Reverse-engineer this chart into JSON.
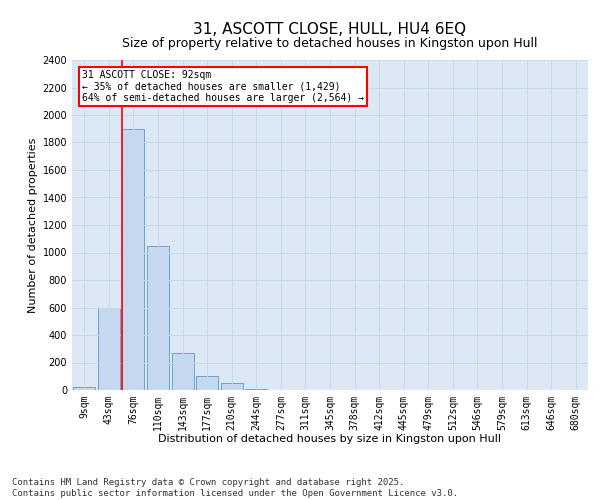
{
  "title": "31, ASCOTT CLOSE, HULL, HU4 6EQ",
  "subtitle": "Size of property relative to detached houses in Kingston upon Hull",
  "xlabel": "Distribution of detached houses by size in Kingston upon Hull",
  "ylabel": "Number of detached properties",
  "footer": "Contains HM Land Registry data © Crown copyright and database right 2025.\nContains public sector information licensed under the Open Government Licence v3.0.",
  "categories": [
    "9sqm",
    "43sqm",
    "76sqm",
    "110sqm",
    "143sqm",
    "177sqm",
    "210sqm",
    "244sqm",
    "277sqm",
    "311sqm",
    "345sqm",
    "378sqm",
    "412sqm",
    "445sqm",
    "479sqm",
    "512sqm",
    "546sqm",
    "579sqm",
    "613sqm",
    "646sqm",
    "680sqm"
  ],
  "values": [
    20,
    600,
    1900,
    1050,
    270,
    105,
    50,
    5,
    0,
    0,
    0,
    0,
    0,
    0,
    0,
    0,
    0,
    0,
    0,
    0,
    0
  ],
  "bar_color": "#c5d8ef",
  "bar_edge_color": "#5b9ac8",
  "vline_index": 2,
  "vline_color": "red",
  "annotation_text": "31 ASCOTT CLOSE: 92sqm\n← 35% of detached houses are smaller (1,429)\n64% of semi-detached houses are larger (2,564) →",
  "annotation_box_color": "red",
  "ylim": [
    0,
    2400
  ],
  "yticks": [
    0,
    200,
    400,
    600,
    800,
    1000,
    1200,
    1400,
    1600,
    1800,
    2000,
    2200,
    2400
  ],
  "grid_color": "#c8d8ea",
  "background_color": "#dce9f5",
  "title_fontsize": 11,
  "subtitle_fontsize": 9,
  "axis_label_fontsize": 8,
  "tick_fontsize": 7,
  "footer_fontsize": 6.5
}
